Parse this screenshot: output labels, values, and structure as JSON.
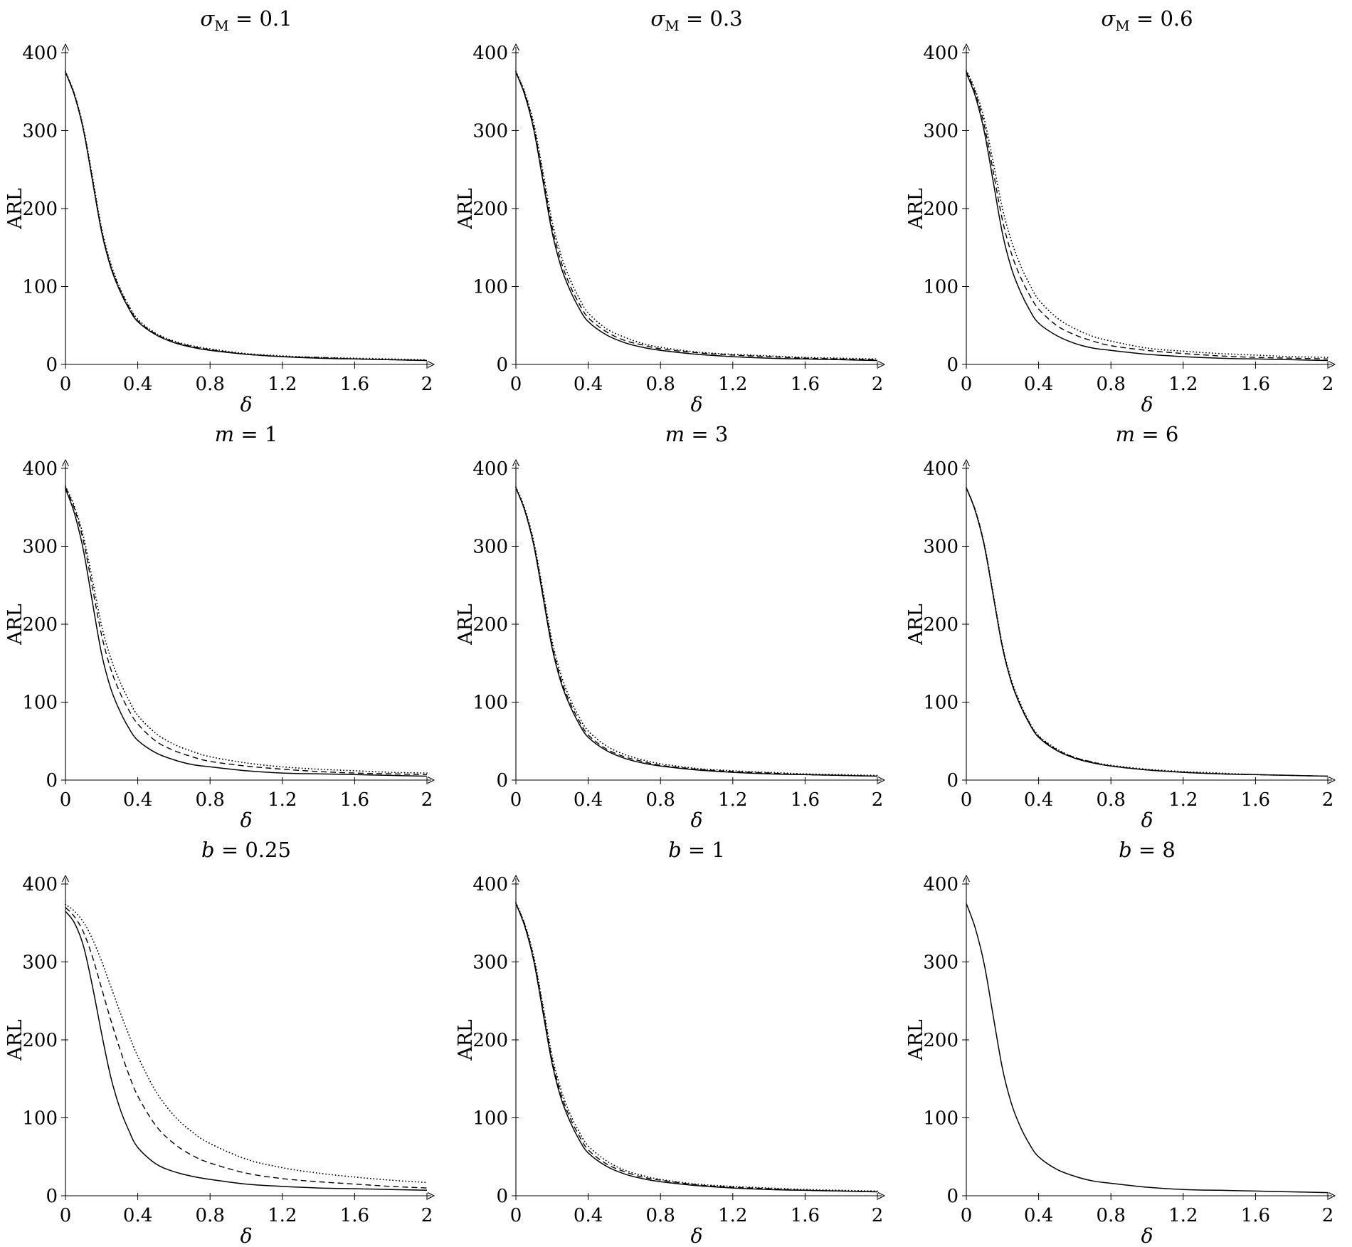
{
  "figure": {
    "description": "3x3 grid of ARL versus delta sensitivity curves",
    "colors": {
      "line": "#000000",
      "axis": "#000000",
      "background": "#ffffff"
    },
    "axis": {
      "xlabel": "δ",
      "ylabel": "ARL",
      "xlim": [
        0,
        2
      ],
      "ylim": [
        0,
        400
      ],
      "xticks": [
        0,
        0.4,
        0.8,
        1.2,
        1.6,
        2
      ],
      "yticks": [
        0,
        100,
        200,
        300,
        400
      ],
      "grid": false,
      "legend": "none"
    }
  },
  "chart_data": [
    {
      "type": "line",
      "title": {
        "symbol": "σ",
        "subscript": "M",
        "rest": "= 0.1"
      },
      "xlabel": "δ",
      "ylabel": "ARL",
      "xlim": [
        0,
        2
      ],
      "ylim": [
        0,
        400
      ],
      "xticks": [
        0,
        0.4,
        0.8,
        1.2,
        1.6,
        2
      ],
      "yticks": [
        0,
        100,
        200,
        300,
        400
      ],
      "x": [
        0,
        0.05,
        0.1,
        0.15,
        0.2,
        0.25,
        0.3,
        0.35,
        0.4,
        0.5,
        0.6,
        0.7,
        0.8,
        1.0,
        1.2,
        1.4,
        1.6,
        1.8,
        2.0
      ],
      "series": [
        {
          "name": "solid",
          "style": "solid",
          "values": [
            375,
            345,
            300,
            235,
            170,
            125,
            95,
            72,
            55,
            38,
            28,
            22,
            18,
            13,
            10,
            8,
            7,
            6,
            5
          ]
        },
        {
          "name": "dashed",
          "style": "dashed",
          "values": [
            375,
            346,
            301,
            237,
            172,
            127,
            97,
            74,
            56,
            39,
            29,
            23,
            19,
            13,
            10,
            9,
            7,
            6,
            5
          ]
        },
        {
          "name": "dotted",
          "style": "dotted",
          "values": [
            376,
            347,
            303,
            240,
            175,
            130,
            99,
            76,
            58,
            40,
            30,
            24,
            20,
            14,
            11,
            9,
            8,
            7,
            6
          ]
        }
      ]
    },
    {
      "type": "line",
      "title": {
        "symbol": "σ",
        "subscript": "M",
        "rest": "= 0.3"
      },
      "xlabel": "δ",
      "ylabel": "ARL",
      "xlim": [
        0,
        2
      ],
      "ylim": [
        0,
        400
      ],
      "xticks": [
        0,
        0.4,
        0.8,
        1.2,
        1.6,
        2
      ],
      "yticks": [
        0,
        100,
        200,
        300,
        400
      ],
      "x": [
        0,
        0.05,
        0.1,
        0.15,
        0.2,
        0.25,
        0.3,
        0.35,
        0.4,
        0.5,
        0.6,
        0.7,
        0.8,
        1.0,
        1.2,
        1.4,
        1.6,
        1.8,
        2.0
      ],
      "series": [
        {
          "name": "solid",
          "style": "solid",
          "values": [
            375,
            345,
            300,
            235,
            170,
            125,
            95,
            72,
            55,
            38,
            28,
            22,
            18,
            13,
            10,
            8,
            7,
            6,
            5
          ]
        },
        {
          "name": "dashed",
          "style": "dashed",
          "values": [
            375,
            347,
            304,
            241,
            177,
            132,
            101,
            78,
            60,
            42,
            31,
            25,
            20,
            15,
            12,
            10,
            8,
            7,
            6
          ]
        },
        {
          "name": "dotted",
          "style": "dotted",
          "values": [
            376,
            349,
            308,
            247,
            184,
            140,
            109,
            85,
            66,
            46,
            35,
            27,
            22,
            16,
            13,
            11,
            9,
            8,
            7
          ]
        }
      ]
    },
    {
      "type": "line",
      "title": {
        "symbol": "σ",
        "subscript": "M",
        "rest": "= 0.6"
      },
      "xlabel": "δ",
      "ylabel": "ARL",
      "xlim": [
        0,
        2
      ],
      "ylim": [
        0,
        400
      ],
      "xticks": [
        0,
        0.4,
        0.8,
        1.2,
        1.6,
        2
      ],
      "yticks": [
        0,
        100,
        200,
        300,
        400
      ],
      "x": [
        0,
        0.05,
        0.1,
        0.15,
        0.2,
        0.25,
        0.3,
        0.35,
        0.4,
        0.5,
        0.6,
        0.7,
        0.8,
        1.0,
        1.2,
        1.4,
        1.6,
        1.8,
        2.0
      ],
      "series": [
        {
          "name": "solid",
          "style": "solid",
          "values": [
            374,
            344,
            298,
            233,
            168,
            123,
            93,
            70,
            53,
            37,
            27,
            21,
            18,
            13,
            10,
            8,
            7,
            6,
            5
          ]
        },
        {
          "name": "dashed",
          "style": "dashed",
          "values": [
            376,
            348,
            306,
            246,
            185,
            142,
            112,
            89,
            71,
            50,
            38,
            30,
            24,
            18,
            14,
            11,
            9,
            8,
            7
          ]
        },
        {
          "name": "dotted",
          "style": "dotted",
          "values": [
            377,
            352,
            314,
            258,
            200,
            158,
            127,
            103,
            83,
            60,
            46,
            36,
            30,
            21,
            17,
            14,
            12,
            10,
            9
          ]
        }
      ]
    },
    {
      "type": "line",
      "title": {
        "symbol": "m",
        "subscript": "",
        "rest": "= 1"
      },
      "xlabel": "δ",
      "ylabel": "ARL",
      "xlim": [
        0,
        2
      ],
      "ylim": [
        0,
        400
      ],
      "xticks": [
        0,
        0.4,
        0.8,
        1.2,
        1.6,
        2
      ],
      "yticks": [
        0,
        100,
        200,
        300,
        400
      ],
      "x": [
        0,
        0.05,
        0.1,
        0.15,
        0.2,
        0.25,
        0.3,
        0.35,
        0.4,
        0.5,
        0.6,
        0.7,
        0.8,
        1.0,
        1.2,
        1.4,
        1.6,
        1.8,
        2.0
      ],
      "series": [
        {
          "name": "solid",
          "style": "solid",
          "values": [
            374,
            342,
            294,
            227,
            162,
            118,
            89,
            67,
            51,
            35,
            26,
            20,
            17,
            12,
            9,
            8,
            7,
            6,
            5
          ]
        },
        {
          "name": "dashed",
          "style": "dashed",
          "values": [
            376,
            348,
            306,
            246,
            186,
            143,
            113,
            90,
            72,
            50,
            38,
            30,
            24,
            18,
            14,
            11,
            9,
            8,
            7
          ]
        },
        {
          "name": "dotted",
          "style": "dotted",
          "values": [
            377,
            351,
            312,
            256,
            198,
            157,
            127,
            103,
            83,
            60,
            46,
            37,
            30,
            22,
            17,
            14,
            12,
            10,
            9
          ]
        }
      ]
    },
    {
      "type": "line",
      "title": {
        "symbol": "m",
        "subscript": "",
        "rest": "= 3"
      },
      "xlabel": "δ",
      "ylabel": "ARL",
      "xlim": [
        0,
        2
      ],
      "ylim": [
        0,
        400
      ],
      "xticks": [
        0,
        0.4,
        0.8,
        1.2,
        1.6,
        2
      ],
      "yticks": [
        0,
        100,
        200,
        300,
        400
      ],
      "x": [
        0,
        0.05,
        0.1,
        0.15,
        0.2,
        0.25,
        0.3,
        0.35,
        0.4,
        0.5,
        0.6,
        0.7,
        0.8,
        1.0,
        1.2,
        1.4,
        1.6,
        1.8,
        2.0
      ],
      "series": [
        {
          "name": "solid",
          "style": "solid",
          "values": [
            375,
            345,
            300,
            235,
            170,
            125,
            95,
            72,
            55,
            38,
            28,
            22,
            18,
            13,
            10,
            8,
            7,
            6,
            5
          ]
        },
        {
          "name": "dashed",
          "style": "dashed",
          "values": [
            375,
            346,
            302,
            239,
            174,
            129,
            99,
            76,
            58,
            40,
            30,
            24,
            19,
            14,
            11,
            9,
            7,
            6,
            5
          ]
        },
        {
          "name": "dotted",
          "style": "dotted",
          "values": [
            376,
            348,
            305,
            243,
            179,
            135,
            104,
            81,
            63,
            44,
            33,
            26,
            21,
            15,
            12,
            10,
            8,
            7,
            6
          ]
        }
      ]
    },
    {
      "type": "line",
      "title": {
        "symbol": "m",
        "subscript": "",
        "rest": "= 6"
      },
      "xlabel": "δ",
      "ylabel": "ARL",
      "xlim": [
        0,
        2
      ],
      "ylim": [
        0,
        400
      ],
      "xticks": [
        0,
        0.4,
        0.8,
        1.2,
        1.6,
        2
      ],
      "yticks": [
        0,
        100,
        200,
        300,
        400
      ],
      "x": [
        0,
        0.05,
        0.1,
        0.15,
        0.2,
        0.25,
        0.3,
        0.35,
        0.4,
        0.5,
        0.6,
        0.7,
        0.8,
        1.0,
        1.2,
        1.4,
        1.6,
        1.8,
        2.0
      ],
      "series": [
        {
          "name": "solid",
          "style": "solid",
          "values": [
            375,
            345,
            300,
            235,
            170,
            125,
            95,
            72,
            55,
            38,
            28,
            22,
            18,
            13,
            10,
            8,
            7,
            6,
            5
          ]
        },
        {
          "name": "dashed",
          "style": "dashed",
          "values": [
            375,
            346,
            301,
            236,
            171,
            126,
            96,
            73,
            56,
            39,
            29,
            23,
            18,
            13,
            10,
            8,
            7,
            6,
            5
          ]
        },
        {
          "name": "dotted",
          "style": "dotted",
          "values": [
            375,
            346,
            302,
            238,
            173,
            128,
            98,
            74,
            57,
            40,
            29,
            23,
            19,
            14,
            11,
            9,
            7,
            6,
            5
          ]
        }
      ]
    },
    {
      "type": "line",
      "title": {
        "symbol": "b",
        "subscript": "",
        "rest": "= 0.25"
      },
      "xlabel": "δ",
      "ylabel": "ARL",
      "xlim": [
        0,
        2
      ],
      "ylim": [
        0,
        400
      ],
      "xticks": [
        0,
        0.4,
        0.8,
        1.2,
        1.6,
        2
      ],
      "yticks": [
        0,
        100,
        200,
        300,
        400
      ],
      "x": [
        0,
        0.05,
        0.1,
        0.15,
        0.2,
        0.25,
        0.3,
        0.35,
        0.4,
        0.5,
        0.6,
        0.7,
        0.8,
        1.0,
        1.2,
        1.4,
        1.6,
        1.8,
        2.0
      ],
      "series": [
        {
          "name": "solid",
          "style": "solid",
          "values": [
            365,
            350,
            320,
            268,
            208,
            153,
            113,
            84,
            62,
            41,
            31,
            25,
            21,
            15,
            12,
            10,
            9,
            8,
            7
          ]
        },
        {
          "name": "dashed",
          "style": "dashed",
          "values": [
            370,
            358,
            338,
            306,
            266,
            226,
            189,
            156,
            128,
            90,
            67,
            52,
            42,
            29,
            22,
            18,
            15,
            12,
            10
          ]
        },
        {
          "name": "dotted",
          "style": "dotted",
          "values": [
            374,
            365,
            351,
            329,
            301,
            269,
            237,
            207,
            179,
            134,
            103,
            82,
            67,
            47,
            36,
            29,
            24,
            20,
            17
          ]
        }
      ]
    },
    {
      "type": "line",
      "title": {
        "symbol": "b",
        "subscript": "",
        "rest": "= 1"
      },
      "xlabel": "δ",
      "ylabel": "ARL",
      "xlim": [
        0,
        2
      ],
      "ylim": [
        0,
        400
      ],
      "xticks": [
        0,
        0.4,
        0.8,
        1.2,
        1.6,
        2
      ],
      "yticks": [
        0,
        100,
        200,
        300,
        400
      ],
      "x": [
        0,
        0.05,
        0.1,
        0.15,
        0.2,
        0.25,
        0.3,
        0.35,
        0.4,
        0.5,
        0.6,
        0.7,
        0.8,
        1.0,
        1.2,
        1.4,
        1.6,
        1.8,
        2.0
      ],
      "series": [
        {
          "name": "solid",
          "style": "solid",
          "values": [
            375,
            345,
            300,
            235,
            170,
            125,
            95,
            72,
            55,
            38,
            28,
            22,
            18,
            13,
            10,
            8,
            7,
            6,
            5
          ]
        },
        {
          "name": "dashed",
          "style": "dashed",
          "values": [
            375,
            347,
            303,
            240,
            175,
            130,
            100,
            77,
            59,
            41,
            31,
            24,
            20,
            14,
            11,
            9,
            7,
            6,
            5
          ]
        },
        {
          "name": "dotted",
          "style": "dotted",
          "values": [
            376,
            348,
            306,
            244,
            180,
            136,
            105,
            82,
            64,
            45,
            33,
            26,
            21,
            15,
            12,
            10,
            8,
            7,
            6
          ]
        }
      ]
    },
    {
      "type": "line",
      "title": {
        "symbol": "b",
        "subscript": "",
        "rest": "= 8"
      },
      "xlabel": "δ",
      "ylabel": "ARL",
      "xlim": [
        0,
        2
      ],
      "ylim": [
        0,
        400
      ],
      "xticks": [
        0,
        0.4,
        0.8,
        1.2,
        1.6,
        2
      ],
      "yticks": [
        0,
        100,
        200,
        300,
        400
      ],
      "x": [
        0,
        0.05,
        0.1,
        0.15,
        0.2,
        0.25,
        0.3,
        0.35,
        0.4,
        0.5,
        0.6,
        0.7,
        0.8,
        1.0,
        1.2,
        1.4,
        1.6,
        1.8,
        2.0
      ],
      "series": [
        {
          "name": "solid",
          "style": "solid",
          "values": [
            375,
            343,
            296,
            229,
            163,
            118,
            88,
            66,
            50,
            34,
            25,
            19,
            16,
            11,
            8,
            7,
            6,
            5,
            4
          ]
        }
      ]
    }
  ]
}
